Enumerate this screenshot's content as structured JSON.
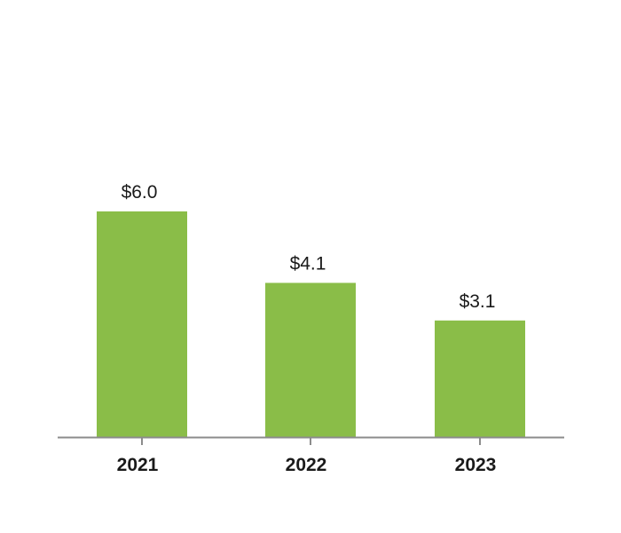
{
  "colors": {
    "bar": "#8abd48",
    "axis": "#8c8c8c",
    "text": "#1a1a1a"
  },
  "chart_data": {
    "type": "bar",
    "title": "",
    "xlabel": "",
    "ylabel": "",
    "categories": [
      "2021",
      "2022",
      "2023"
    ],
    "values": [
      6.0,
      4.1,
      3.1
    ],
    "value_labels": [
      "$6.0",
      "$4.1",
      "$3.1"
    ],
    "ylim": [
      0,
      6.0
    ],
    "grid": false,
    "legend": "none"
  }
}
